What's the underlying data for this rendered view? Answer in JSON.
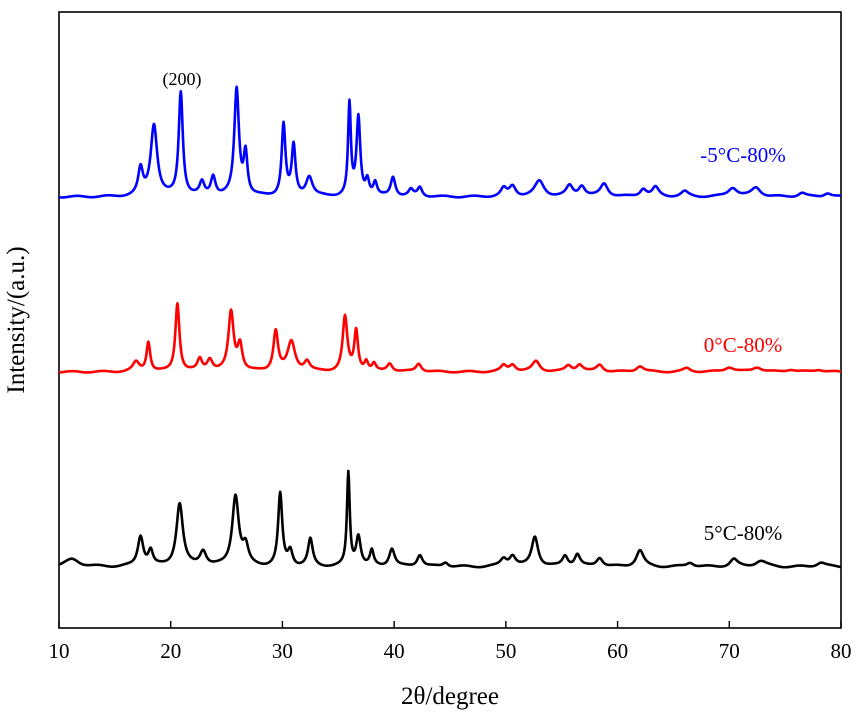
{
  "chart_data": {
    "type": "line",
    "title": "",
    "xlabel": "2θ/degree",
    "ylabel": "Intensity/(a.u.)",
    "xlim": [
      10,
      80
    ],
    "xticks": [
      10,
      20,
      30,
      40,
      50,
      60,
      70,
      80
    ],
    "xtick_labels": [
      "10",
      "20",
      "30",
      "40",
      "50",
      "60",
      "70",
      "80"
    ],
    "yticks": false,
    "grid": false,
    "legend": "labels placed beside each curve (right side)",
    "annotations": [
      {
        "text": "(200)",
        "x": 20.9,
        "series": "-5°C-80%"
      }
    ],
    "series": [
      {
        "name": "-5°C-80%",
        "color": "#0000ff",
        "baseline": 0.0,
        "peaks": [
          [
            17.3,
            0.2,
            0.25
          ],
          [
            18.5,
            0.55,
            0.35
          ],
          [
            20.9,
            0.8,
            0.22
          ],
          [
            22.8,
            0.1,
            0.25
          ],
          [
            23.8,
            0.15,
            0.25
          ],
          [
            25.9,
            0.82,
            0.25
          ],
          [
            26.7,
            0.32,
            0.2
          ],
          [
            30.1,
            0.55,
            0.2
          ],
          [
            31.0,
            0.38,
            0.2
          ],
          [
            32.4,
            0.15,
            0.35
          ],
          [
            36.0,
            0.7,
            0.15
          ],
          [
            36.8,
            0.6,
            0.2
          ],
          [
            37.6,
            0.12,
            0.2
          ],
          [
            38.3,
            0.1,
            0.2
          ],
          [
            39.9,
            0.15,
            0.25
          ],
          [
            41.5,
            0.05,
            0.25
          ],
          [
            42.3,
            0.07,
            0.25
          ],
          [
            49.8,
            0.06,
            0.3
          ],
          [
            50.6,
            0.08,
            0.35
          ],
          [
            53.0,
            0.12,
            0.5
          ],
          [
            55.7,
            0.08,
            0.35
          ],
          [
            56.8,
            0.08,
            0.35
          ],
          [
            58.8,
            0.1,
            0.4
          ],
          [
            62.3,
            0.06,
            0.35
          ],
          [
            63.4,
            0.07,
            0.35
          ],
          [
            66.0,
            0.04,
            0.4
          ],
          [
            70.3,
            0.07,
            0.5
          ],
          [
            72.4,
            0.07,
            0.5
          ],
          [
            76.5,
            0.03,
            0.4
          ],
          [
            78.8,
            0.03,
            0.4
          ]
        ]
      },
      {
        "name": "0°C-80%",
        "color": "#ff0000",
        "baseline": 0.0,
        "peaks": [
          [
            16.9,
            0.08,
            0.35
          ],
          [
            18.0,
            0.25,
            0.2
          ],
          [
            20.6,
            0.58,
            0.22
          ],
          [
            22.6,
            0.1,
            0.25
          ],
          [
            23.5,
            0.1,
            0.3
          ],
          [
            25.4,
            0.5,
            0.28
          ],
          [
            26.2,
            0.22,
            0.25
          ],
          [
            29.4,
            0.34,
            0.25
          ],
          [
            30.8,
            0.25,
            0.4
          ],
          [
            32.2,
            0.08,
            0.3
          ],
          [
            35.6,
            0.46,
            0.25
          ],
          [
            36.6,
            0.34,
            0.2
          ],
          [
            37.5,
            0.08,
            0.2
          ],
          [
            38.2,
            0.06,
            0.2
          ],
          [
            39.6,
            0.07,
            0.3
          ],
          [
            42.2,
            0.07,
            0.3
          ],
          [
            49.8,
            0.05,
            0.3
          ],
          [
            50.6,
            0.06,
            0.35
          ],
          [
            52.7,
            0.09,
            0.4
          ],
          [
            55.6,
            0.05,
            0.35
          ],
          [
            56.6,
            0.06,
            0.35
          ],
          [
            58.4,
            0.06,
            0.35
          ],
          [
            62.0,
            0.05,
            0.4
          ],
          [
            66.2,
            0.03,
            0.4
          ],
          [
            70.0,
            0.04,
            0.5
          ],
          [
            72.5,
            0.04,
            0.5
          ],
          [
            75.5,
            0.02,
            0.5
          ],
          [
            78.0,
            0.02,
            0.5
          ]
        ]
      },
      {
        "name": "5°C-80%",
        "color": "#000000",
        "baseline": 0.0,
        "peaks": [
          [
            11.2,
            0.05,
            0.8
          ],
          [
            17.3,
            0.2,
            0.3
          ],
          [
            18.2,
            0.1,
            0.25
          ],
          [
            20.8,
            0.42,
            0.35
          ],
          [
            22.9,
            0.1,
            0.35
          ],
          [
            25.8,
            0.47,
            0.35
          ],
          [
            26.7,
            0.12,
            0.3
          ],
          [
            29.8,
            0.48,
            0.22
          ],
          [
            30.7,
            0.1,
            0.25
          ],
          [
            32.5,
            0.18,
            0.25
          ],
          [
            35.9,
            0.62,
            0.15
          ],
          [
            36.8,
            0.2,
            0.25
          ],
          [
            38.0,
            0.1,
            0.2
          ],
          [
            39.8,
            0.12,
            0.3
          ],
          [
            42.3,
            0.08,
            0.3
          ],
          [
            44.6,
            0.03,
            0.3
          ],
          [
            49.8,
            0.05,
            0.35
          ],
          [
            50.6,
            0.07,
            0.35
          ],
          [
            52.6,
            0.2,
            0.35
          ],
          [
            55.3,
            0.07,
            0.3
          ],
          [
            56.4,
            0.08,
            0.3
          ],
          [
            58.4,
            0.06,
            0.35
          ],
          [
            62.0,
            0.11,
            0.4
          ],
          [
            66.5,
            0.03,
            0.4
          ],
          [
            70.4,
            0.05,
            0.4
          ],
          [
            72.8,
            0.04,
            0.6
          ],
          [
            78.2,
            0.03,
            0.5
          ]
        ]
      }
    ]
  }
}
